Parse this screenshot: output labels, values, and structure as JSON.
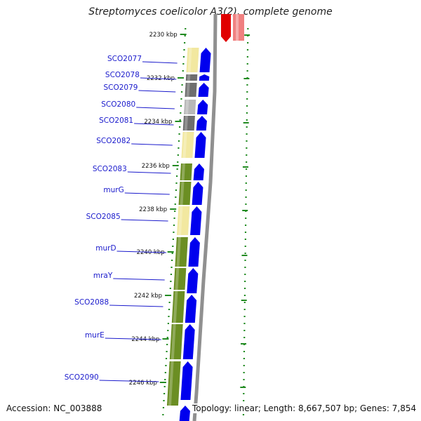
{
  "title": "Streptomyces coelicolor A3(2), complete genome",
  "accession": "Accession: NC_003888",
  "summary": "Topology: linear; Length: 8,667,507 bp; Genes: 7,854",
  "kbp_ticks": [
    "2230 kbp",
    "2232 kbp",
    "2234 kbp",
    "2236 kbp",
    "2238 kbp",
    "2240 kbp",
    "2242 kbp",
    "2244 kbp",
    "2246 kbp"
  ],
  "genes": [
    "SCO2077",
    "SCO2078",
    "SCO2079",
    "SCO2080",
    "SCO2081",
    "SCO2082",
    "SCO2083",
    "murG",
    "SCO2085",
    "murD",
    "mraY",
    "SCO2088",
    "murE",
    "SCO2090"
  ],
  "colors": {
    "arrow_blue": "#0000ee",
    "pale_yellow": "#f2e8a0",
    "olive_green": "#6b8e23",
    "dark_gray": "#6e6e6e",
    "light_gray": "#b8b8b8",
    "red": "#e00000",
    "pink": "#f08080",
    "tick_green": "#228b22",
    "label_blue": "#1a1acc"
  }
}
